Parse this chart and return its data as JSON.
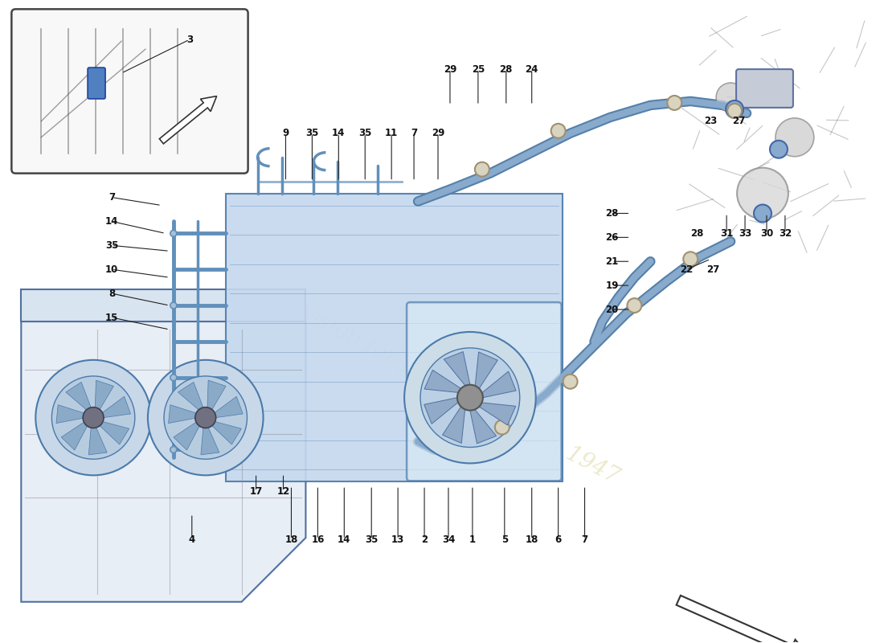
{
  "bg": "#ffffff",
  "rad_fill": "#c5d8ee",
  "rad_edge": "#4a7aaa",
  "tube_color": "#6090bb",
  "hose_fill": "#88aacc",
  "hose_dark": "#5580aa",
  "clamp_fill": "#c8c8c8",
  "clamp_edge": "#888888",
  "line_color": "#222222",
  "label_fs": 8.5,
  "inset_bg": "#f8f8f8",
  "engine_line": "#707070",
  "wm_color": "#ddd8a0",
  "wm_alpha": 0.55
}
